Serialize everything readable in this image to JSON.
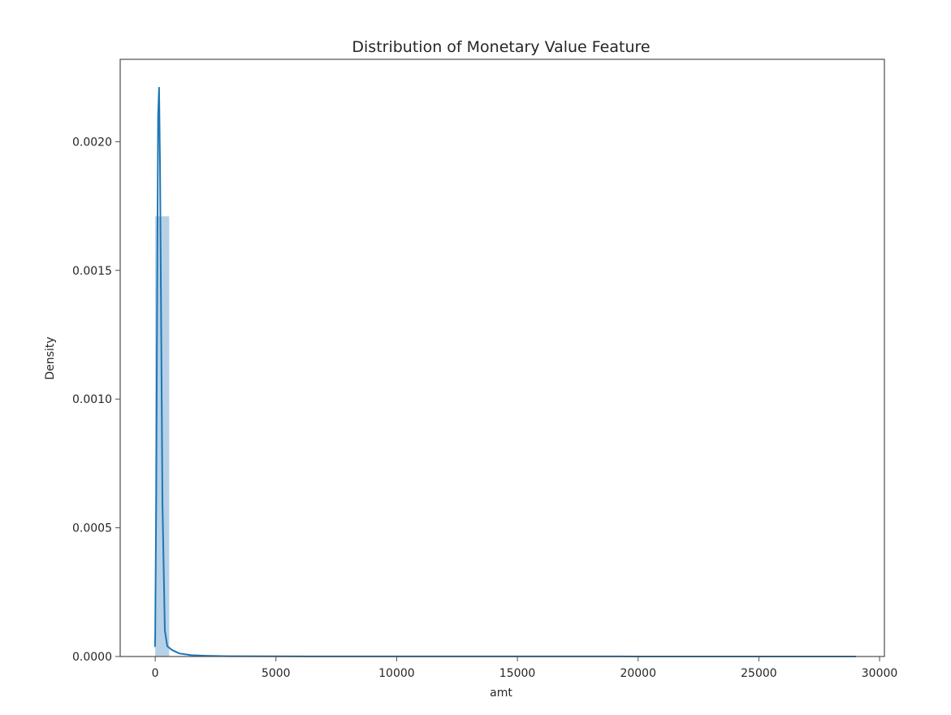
{
  "chart_data": {
    "type": "histogram",
    "title": "Distribution of Monetary Value Feature",
    "xlabel": "amt",
    "ylabel": "Density",
    "xlim": [
      -1450,
      30200
    ],
    "ylim": [
      0,
      0.00232
    ],
    "x_ticks": [
      0,
      5000,
      10000,
      15000,
      20000,
      25000,
      30000
    ],
    "x_tick_labels": [
      "0",
      "5000",
      "10000",
      "15000",
      "20000",
      "25000",
      "30000"
    ],
    "y_ticks": [
      0,
      0.0005,
      0.001,
      0.0015,
      0.002
    ],
    "y_tick_labels": [
      "0.0000",
      "0.0005",
      "0.0010",
      "0.0015",
      "0.0020"
    ],
    "grid": false,
    "legend": "none",
    "histogram": {
      "color": "#a9c9e2",
      "bins": [
        {
          "x0": 0,
          "x1": 580,
          "density": 0.00171
        },
        {
          "x0": 580,
          "x1": 1160,
          "density": 1.6e-06
        },
        {
          "x0": 1160,
          "x1": 1740,
          "density": 5e-07
        },
        {
          "x0": 1740,
          "x1": 2320,
          "density": 2e-07
        }
      ]
    },
    "kde": {
      "color": "#1f77b4",
      "x": [
        -10,
        0,
        40,
        80,
        120,
        160,
        200,
        250,
        300,
        400,
        500,
        700,
        1000,
        1500,
        2000,
        3000,
        5000,
        10000,
        15000,
        20000,
        25000,
        29000
      ],
      "y": [
        4e-05,
        8e-05,
        0.0006,
        0.0014,
        0.0021,
        0.00221,
        0.0019,
        0.00125,
        0.0006,
        0.0001,
        4e-05,
        2.5e-05,
        1.2e-05,
        5e-06,
        3e-06,
        1e-06,
        6e-07,
        4e-07,
        3e-07,
        2e-07,
        1e-07,
        5e-08
      ]
    }
  }
}
